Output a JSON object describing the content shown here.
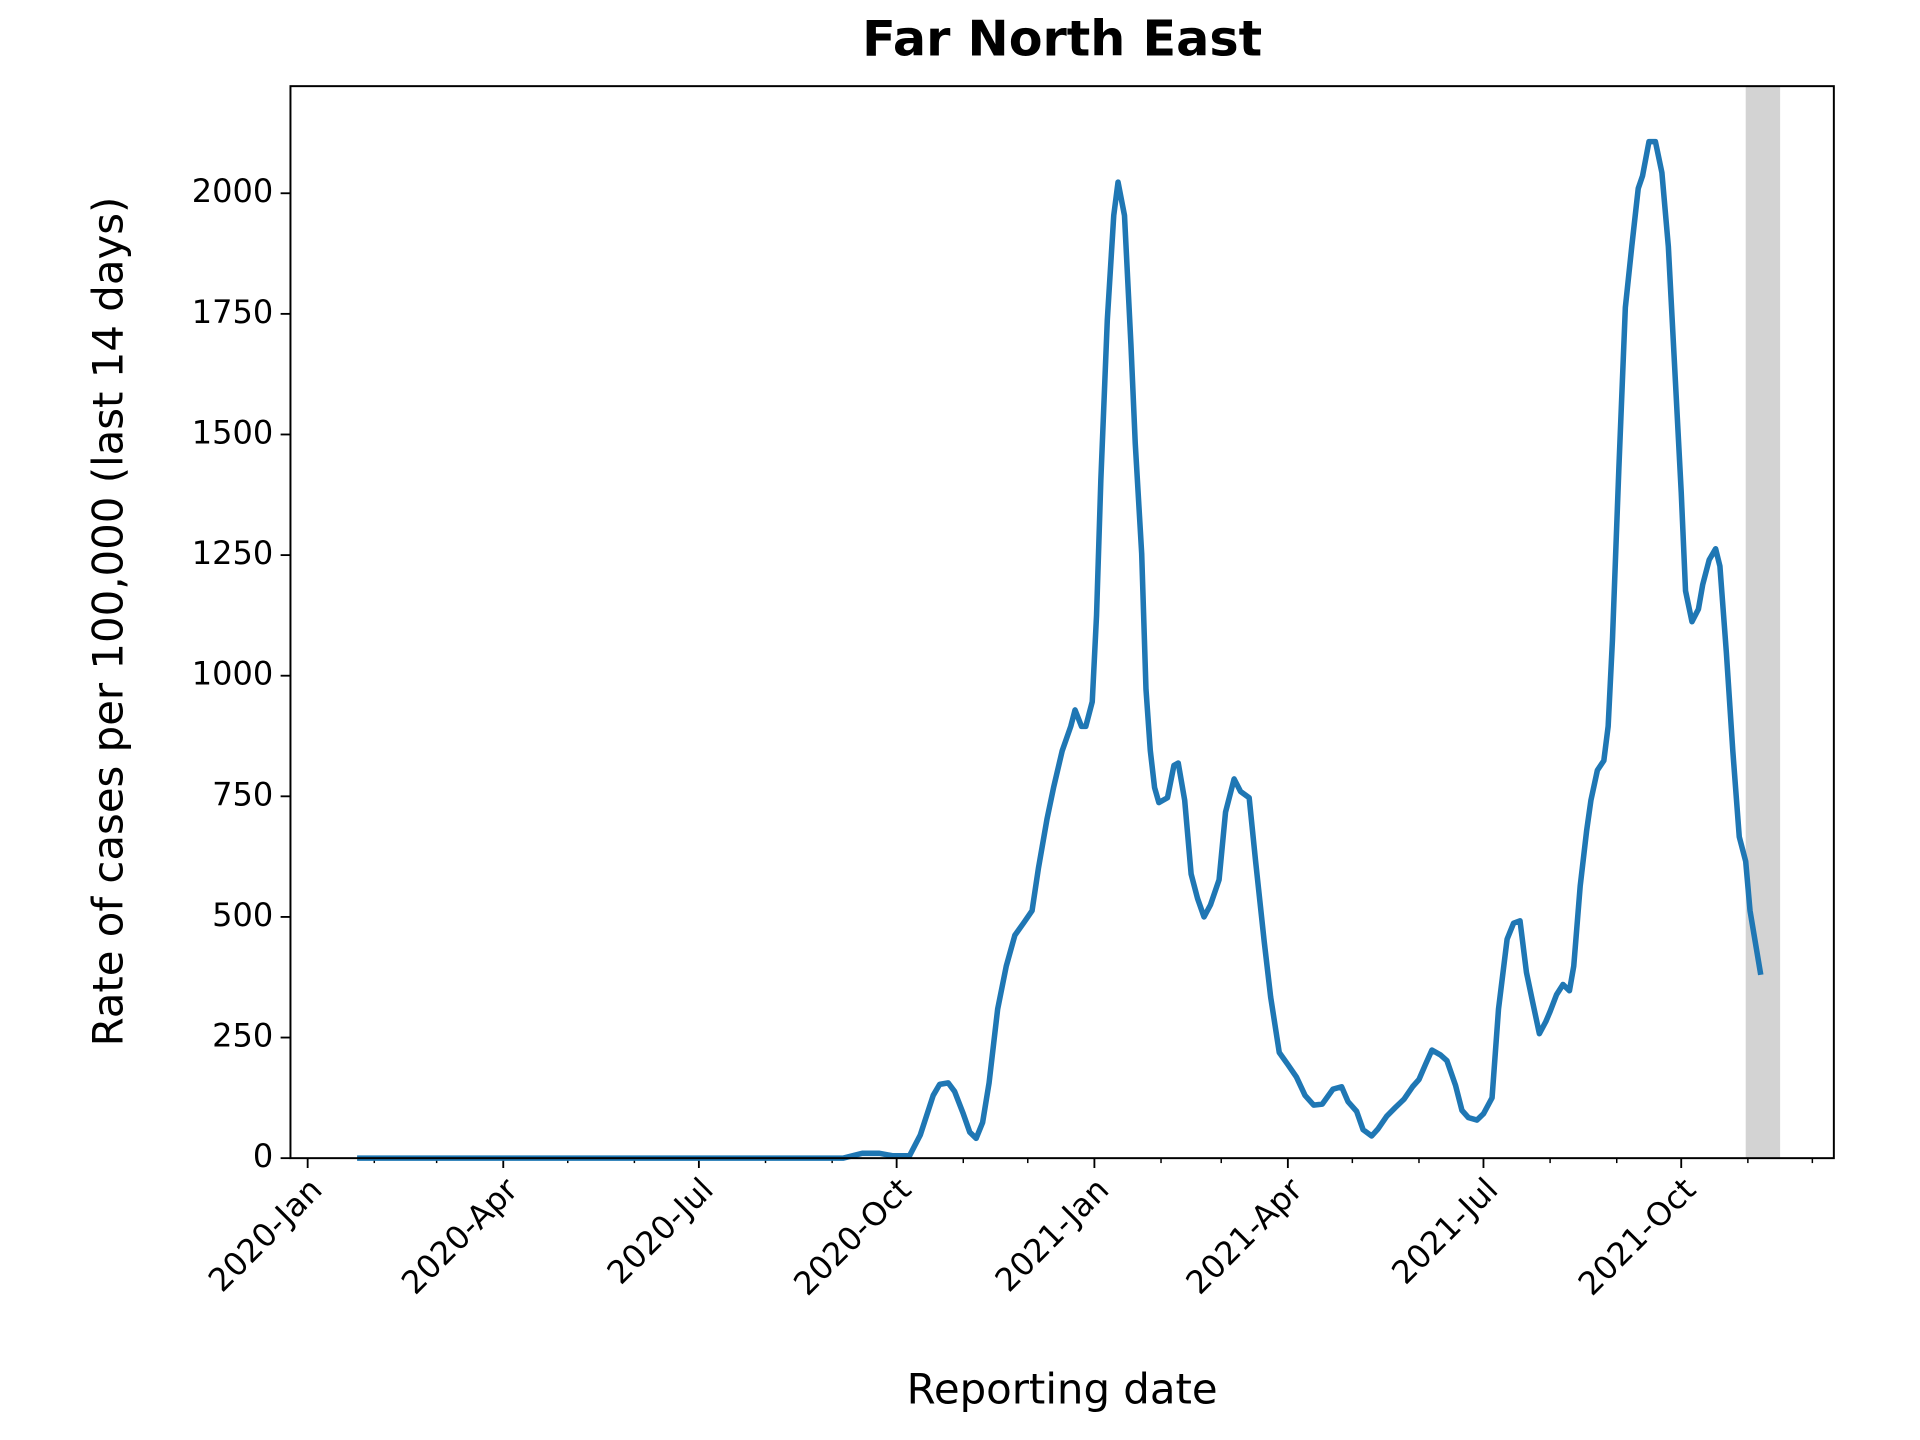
{
  "chart_data": {
    "type": "line",
    "title": "Far North East",
    "xlabel": "Reporting date",
    "ylabel": "Rate of cases per 100,000 (last 14 days)",
    "color": "#1f77b4",
    "shade_color": "#d3d3d3",
    "shaded_span": [
      "2021-10-31",
      "2021-11-16"
    ],
    "xlim": [
      "2019-12-24",
      "2021-12-11"
    ],
    "xticks": [
      {
        "value": "2020-01-01",
        "label": "2020-Jan"
      },
      {
        "value": "2020-04-01",
        "label": "2020-Apr"
      },
      {
        "value": "2020-07-01",
        "label": "2020-Jul"
      },
      {
        "value": "2020-10-01",
        "label": "2020-Oct"
      },
      {
        "value": "2021-01-01",
        "label": "2021-Jan"
      },
      {
        "value": "2021-04-01",
        "label": "2021-Apr"
      },
      {
        "value": "2021-07-01",
        "label": "2021-Jul"
      },
      {
        "value": "2021-10-01",
        "label": "2021-Oct"
      }
    ],
    "xminorticks": [
      "2020-02-01",
      "2020-03-01",
      "2020-05-01",
      "2020-06-01",
      "2020-08-01",
      "2020-09-01",
      "2020-11-01",
      "2020-12-01",
      "2021-02-01",
      "2021-03-01",
      "2021-05-01",
      "2021-06-01",
      "2021-08-01",
      "2021-09-01",
      "2021-11-01",
      "2021-12-01"
    ],
    "ylim": [
      0,
      2222
    ],
    "yticks": [
      0,
      250,
      500,
      750,
      1000,
      1250,
      1500,
      1750,
      2000
    ],
    "x": [
      "2020-01-24",
      "2020-09-06",
      "2020-09-15",
      "2020-09-23",
      "2020-09-29",
      "2020-10-07",
      "2020-10-12",
      "2020-10-18",
      "2020-10-21",
      "2020-10-25",
      "2020-10-28",
      "2020-11-01",
      "2020-11-04",
      "2020-11-07",
      "2020-11-10",
      "2020-11-13",
      "2020-11-17",
      "2020-11-21",
      "2020-11-25",
      "2020-11-29",
      "2020-12-03",
      "2020-12-06",
      "2020-12-10",
      "2020-12-13",
      "2020-12-17",
      "2020-12-21",
      "2020-12-23",
      "2020-12-26",
      "2020-12-28",
      "2020-12-31",
      "2021-01-02",
      "2021-01-04",
      "2021-01-07",
      "2021-01-10",
      "2021-01-12",
      "2021-01-15",
      "2021-01-18",
      "2021-01-20",
      "2021-01-23",
      "2021-01-25",
      "2021-01-27",
      "2021-01-29",
      "2021-01-31",
      "2021-02-04",
      "2021-02-07",
      "2021-02-09",
      "2021-02-12",
      "2021-02-15",
      "2021-02-18",
      "2021-02-21",
      "2021-02-24",
      "2021-02-28",
      "2021-03-03",
      "2021-03-07",
      "2021-03-10",
      "2021-03-14",
      "2021-03-17",
      "2021-03-21",
      "2021-03-24",
      "2021-03-28",
      "2021-04-01",
      "2021-04-05",
      "2021-04-09",
      "2021-04-13",
      "2021-04-17",
      "2021-04-22",
      "2021-04-26",
      "2021-04-29",
      "2021-05-03",
      "2021-05-06",
      "2021-05-10",
      "2021-05-13",
      "2021-05-17",
      "2021-05-21",
      "2021-05-25",
      "2021-05-29",
      "2021-06-01",
      "2021-06-04",
      "2021-06-07",
      "2021-06-11",
      "2021-06-14",
      "2021-06-18",
      "2021-06-21",
      "2021-06-24",
      "2021-06-28",
      "2021-07-01",
      "2021-07-05",
      "2021-07-08",
      "2021-07-12",
      "2021-07-15",
      "2021-07-18",
      "2021-07-21",
      "2021-07-24",
      "2021-07-27",
      "2021-07-30",
      "2021-08-01",
      "2021-08-04",
      "2021-08-07",
      "2021-08-10",
      "2021-08-12",
      "2021-08-15",
      "2021-08-18",
      "2021-08-20",
      "2021-08-23",
      "2021-08-26",
      "2021-08-28",
      "2021-08-30",
      "2021-09-02",
      "2021-09-05",
      "2021-09-08",
      "2021-09-11",
      "2021-09-13",
      "2021-09-16",
      "2021-09-19",
      "2021-09-22",
      "2021-09-25",
      "2021-09-28",
      "2021-10-01",
      "2021-10-03",
      "2021-10-06",
      "2021-10-09",
      "2021-10-11",
      "2021-10-14",
      "2021-10-17",
      "2021-10-19",
      "2021-10-22",
      "2021-10-25",
      "2021-10-28",
      "2021-10-31",
      "2021-11-02",
      "2021-11-07"
    ],
    "values": [
      0,
      0,
      10,
      10,
      5,
      5,
      48,
      130,
      153,
      156,
      138,
      92,
      54,
      41,
      74,
      156,
      309,
      398,
      462,
      487,
      513,
      602,
      704,
      768,
      844,
      895,
      929,
      895,
      895,
      946,
      1125,
      1406,
      1737,
      1954,
      2023,
      1954,
      1686,
      1482,
      1253,
      972,
      845,
      768,
      737,
      747,
      814,
      819,
      742,
      589,
      538,
      500,
      525,
      577,
      717,
      786,
      760,
      747,
      615,
      449,
      334,
      219,
      194,
      168,
      130,
      110,
      112,
      143,
      148,
      117,
      97,
      59,
      46,
      61,
      87,
      105,
      122,
      148,
      163,
      194,
      224,
      214,
      202,
      151,
      99,
      84,
      79,
      92,
      125,
      309,
      454,
      487,
      492,
      385,
      321,
      258,
      283,
      304,
      339,
      360,
      347,
      398,
      564,
      679,
      742,
      804,
      824,
      895,
      1074,
      1431,
      1763,
      1890,
      2010,
      2036,
      2107,
      2107,
      2043,
      1890,
      1635,
      1380,
      1176,
      1112,
      1138,
      1189,
      1240,
      1263,
      1227,
      1048,
      844,
      666,
      615,
      513,
      380
    ]
  }
}
